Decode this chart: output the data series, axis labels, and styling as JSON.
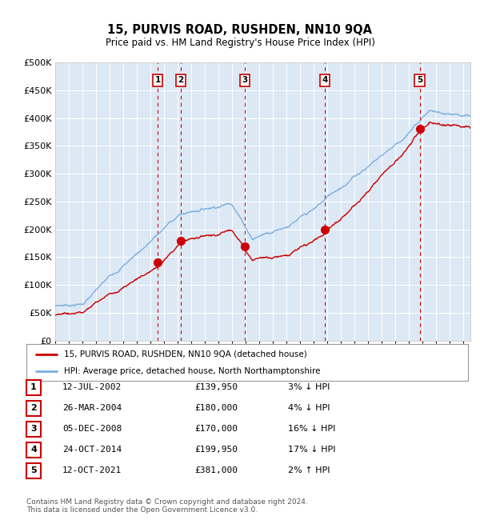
{
  "title": "15, PURVIS ROAD, RUSHDEN, NN10 9QA",
  "subtitle": "Price paid vs. HM Land Registry's House Price Index (HPI)",
  "background_color": "#ffffff",
  "plot_bg_color": "#dce9f5",
  "grid_color": "#ffffff",
  "y_min": 0,
  "y_max": 500000,
  "y_ticks": [
    0,
    50000,
    100000,
    150000,
    200000,
    250000,
    300000,
    350000,
    400000,
    450000,
    500000
  ],
  "y_tick_labels": [
    "£0",
    "£50K",
    "£100K",
    "£150K",
    "£200K",
    "£250K",
    "£300K",
    "£350K",
    "£400K",
    "£450K",
    "£500K"
  ],
  "sale_dates_x": [
    2002.53,
    2004.23,
    2008.92,
    2014.81,
    2021.78
  ],
  "sale_prices_y": [
    139950,
    180000,
    170000,
    199950,
    381000
  ],
  "sale_labels": [
    "1",
    "2",
    "3",
    "4",
    "5"
  ],
  "legend_line1": "15, PURVIS ROAD, RUSHDEN, NN10 9QA (detached house)",
  "legend_line2": "HPI: Average price, detached house, North Northamptonshire",
  "table_data": [
    [
      "1",
      "12-JUL-2002",
      "£139,950",
      "3% ↓ HPI"
    ],
    [
      "2",
      "26-MAR-2004",
      "£180,000",
      "4% ↓ HPI"
    ],
    [
      "3",
      "05-DEC-2008",
      "£170,000",
      "16% ↓ HPI"
    ],
    [
      "4",
      "24-OCT-2014",
      "£199,950",
      "17% ↓ HPI"
    ],
    [
      "5",
      "12-OCT-2021",
      "£381,000",
      "2% ↑ HPI"
    ]
  ],
  "footnote": "Contains HM Land Registry data © Crown copyright and database right 2024.\nThis data is licensed under the Open Government Licence v3.0.",
  "red_color": "#cc0000",
  "blue_color": "#7aade0",
  "dot_color": "#cc0000"
}
